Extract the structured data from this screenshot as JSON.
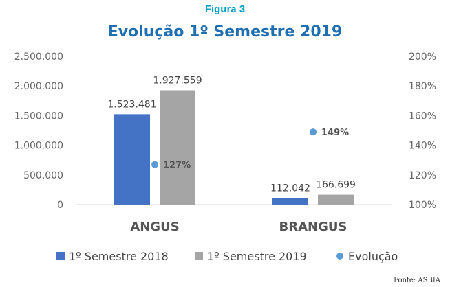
{
  "figure_label": "Figura 3",
  "source": "Fonte: ASBIA",
  "colors": {
    "series_2018": "#4472c4",
    "series_2019": "#a5a5a5",
    "evolution": "#5b9bd5",
    "title": "#1f6fb2",
    "figure_label": "#00a0c6"
  },
  "chart_data": {
    "type": "bar",
    "title": "Evolução 1º Semestre 2019",
    "categories": [
      "ANGUS",
      "BRANGUS"
    ],
    "series": [
      {
        "name": "1º Semestre 2018",
        "values": [
          1523481,
          112042
        ],
        "value_labels": [
          "1.523.481",
          "112.042"
        ],
        "axis": "left"
      },
      {
        "name": "1º Semestre 2019",
        "values": [
          1927559,
          166699
        ],
        "value_labels": [
          "1.927.559",
          "166.699"
        ],
        "axis": "left"
      },
      {
        "name": "Evolução",
        "type": "scatter",
        "values": [
          127,
          149
        ],
        "value_labels": [
          "127%",
          "149%"
        ],
        "axis": "right"
      }
    ],
    "y_left": {
      "min": 0,
      "max": 2500000,
      "ticks": [
        0,
        500000,
        1000000,
        1500000,
        2000000,
        2500000
      ],
      "tick_labels": [
        "0",
        "500.000",
        "1.000.000",
        "1.500.000",
        "2.000.000",
        "2.500.000"
      ]
    },
    "y_right": {
      "min": 100,
      "max": 200,
      "ticks": [
        100,
        120,
        140,
        160,
        180,
        200
      ],
      "tick_labels": [
        "100%",
        "120%",
        "140%",
        "160%",
        "180%",
        "200%"
      ]
    },
    "xlabel": "",
    "ylabel": "",
    "grid": false,
    "legend_position": "bottom"
  }
}
